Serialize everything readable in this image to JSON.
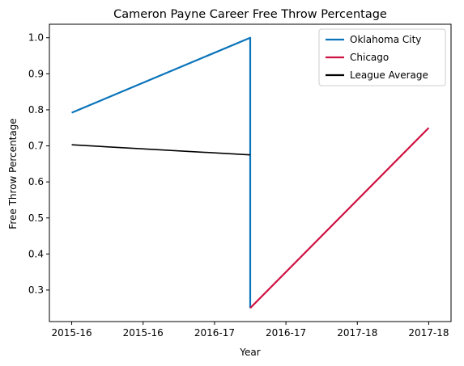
{
  "chart_data": {
    "type": "line",
    "title": "Cameron Payne Career Free Throw Percentage",
    "xlabel": "Year",
    "ylabel": "Free Throw Percentage",
    "xlim": [
      -0.125,
      2.125
    ],
    "ylim": [
      0.2125,
      1.0375
    ],
    "x_ticks": [
      {
        "x": 0.0,
        "label": "2015-16"
      },
      {
        "x": 0.4,
        "label": "2015-16"
      },
      {
        "x": 0.8,
        "label": "2016-17"
      },
      {
        "x": 1.2,
        "label": "2016-17"
      },
      {
        "x": 1.6,
        "label": "2017-18"
      },
      {
        "x": 2.0,
        "label": "2017-18"
      }
    ],
    "y_ticks": [
      {
        "y": 0.3,
        "label": "0.3"
      },
      {
        "y": 0.4,
        "label": "0.4"
      },
      {
        "y": 0.5,
        "label": "0.5"
      },
      {
        "y": 0.6,
        "label": "0.6"
      },
      {
        "y": 0.7,
        "label": "0.7"
      },
      {
        "y": 0.8,
        "label": "0.8"
      },
      {
        "y": 0.9,
        "label": "0.9"
      },
      {
        "y": 1.0,
        "label": "1.0"
      }
    ],
    "grid": false,
    "legend_position": "top-right",
    "series": [
      {
        "name": "Oklahoma City",
        "color": "#0a74ba",
        "points": [
          [
            0,
            0.792
          ],
          [
            1,
            1.0
          ],
          [
            1,
            0.25
          ]
        ]
      },
      {
        "name": "Chicago",
        "color": "#ce1141",
        "points": [
          [
            1,
            0.25
          ],
          [
            2,
            0.75
          ]
        ]
      },
      {
        "name": "League Average",
        "color": "#000000",
        "points": [
          [
            0,
            0.703
          ],
          [
            1,
            0.675
          ]
        ]
      }
    ]
  }
}
